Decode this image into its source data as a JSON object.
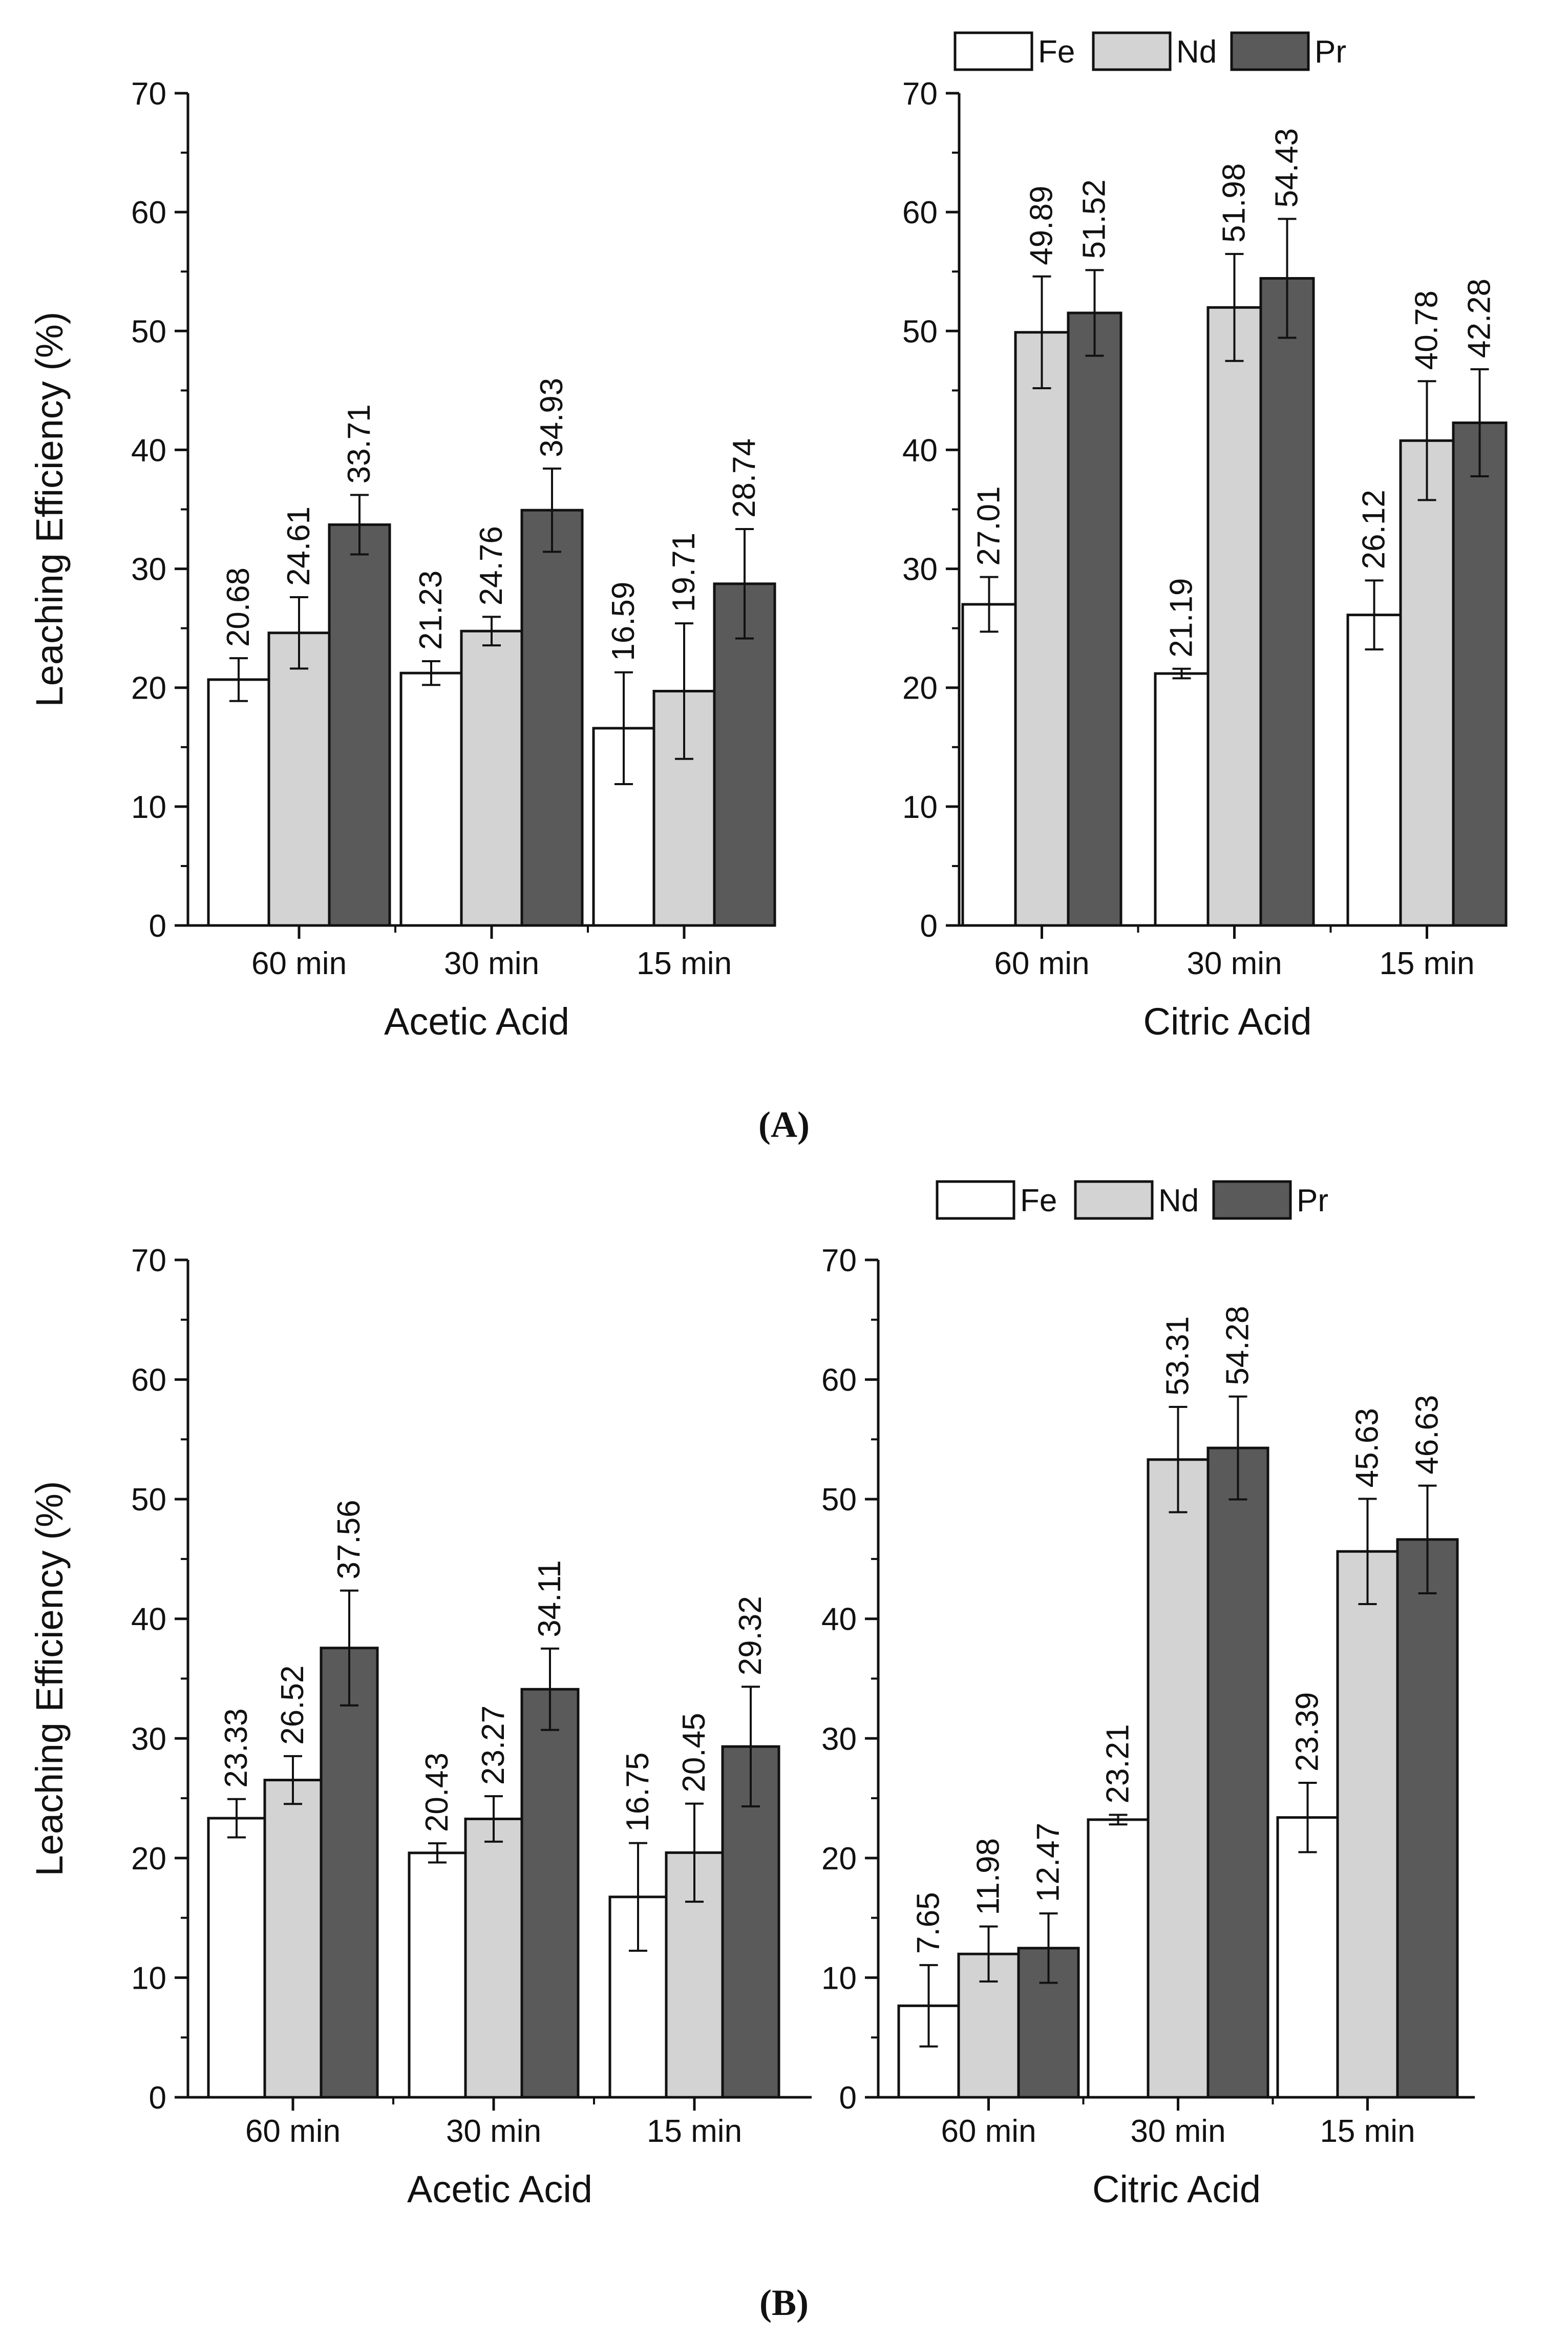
{
  "figure": {
    "series_names": [
      "Fe",
      "Nd",
      "Pr"
    ],
    "series_colors": [
      "#ffffff",
      "#d3d3d3",
      "#5a5a5a"
    ],
    "panel_labels": [
      "(A)",
      "(B)"
    ]
  },
  "chart_data": [
    {
      "type": "bar",
      "panel": "A",
      "position": "top-left",
      "title": "",
      "xlabel": "Acetic Acid",
      "ylabel": "Leaching Efficiency (%)",
      "ylim": [
        0,
        70
      ],
      "yticks": [
        0,
        10,
        20,
        30,
        40,
        50,
        60,
        70
      ],
      "categories": [
        "60 min",
        "30 min",
        "15 min"
      ],
      "legend": false,
      "series": [
        {
          "name": "Fe",
          "values": [
            20.68,
            21.23,
            16.59
          ],
          "errors": [
            1.8,
            1.0,
            4.7
          ],
          "labels": [
            "20.68",
            "21.23",
            "16.59"
          ]
        },
        {
          "name": "Nd",
          "values": [
            24.61,
            24.76,
            19.71
          ],
          "errors": [
            3.0,
            1.2,
            5.7
          ],
          "labels": [
            "24.61",
            "24.76",
            "19.71"
          ]
        },
        {
          "name": "Pr",
          "values": [
            33.71,
            34.93,
            28.74
          ],
          "errors": [
            2.5,
            3.5,
            4.6
          ],
          "labels": [
            "33.71",
            "34.93",
            "28.74"
          ]
        }
      ]
    },
    {
      "type": "bar",
      "panel": "A",
      "position": "top-right",
      "title": "",
      "xlabel": "Citric Acid",
      "ylabel": "",
      "ylim": [
        0,
        70
      ],
      "yticks": [
        0,
        10,
        20,
        30,
        40,
        50,
        60,
        70
      ],
      "categories": [
        "60 min",
        "30 min",
        "15 min"
      ],
      "legend": true,
      "series": [
        {
          "name": "Fe",
          "values": [
            27.01,
            21.19,
            26.12
          ],
          "errors": [
            2.3,
            0.4,
            2.9
          ],
          "labels": [
            "27.01",
            "21.19",
            "26.12"
          ]
        },
        {
          "name": "Nd",
          "values": [
            49.89,
            51.98,
            40.78
          ],
          "errors": [
            4.7,
            4.5,
            5.0
          ],
          "labels": [
            "49.89",
            "51.98",
            "40.78"
          ]
        },
        {
          "name": "Pr",
          "values": [
            51.52,
            54.43,
            42.28
          ],
          "errors": [
            3.6,
            5.0,
            4.5
          ],
          "labels": [
            "51.52",
            "54.43",
            "42.28"
          ]
        }
      ]
    },
    {
      "type": "bar",
      "panel": "B",
      "position": "bottom-left",
      "title": "",
      "xlabel": "Acetic Acid",
      "ylabel": "Leaching Efficiency (%)",
      "ylim": [
        0,
        70
      ],
      "yticks": [
        0,
        10,
        20,
        30,
        40,
        50,
        60,
        70
      ],
      "categories": [
        "60 min",
        "30 min",
        "15 min"
      ],
      "legend": false,
      "series": [
        {
          "name": "Fe",
          "values": [
            23.33,
            20.43,
            16.75
          ],
          "errors": [
            1.6,
            0.8,
            4.5
          ],
          "labels": [
            "23.33",
            "20.43",
            "16.75"
          ]
        },
        {
          "name": "Nd",
          "values": [
            26.52,
            23.27,
            20.45
          ],
          "errors": [
            2.0,
            1.9,
            4.1
          ],
          "labels": [
            "26.52",
            "23.27",
            "20.45"
          ]
        },
        {
          "name": "Pr",
          "values": [
            37.56,
            34.11,
            29.32
          ],
          "errors": [
            4.8,
            3.4,
            5.0
          ],
          "labels": [
            "37.56",
            "34.11",
            "29.32"
          ]
        }
      ]
    },
    {
      "type": "bar",
      "panel": "B",
      "position": "bottom-right",
      "title": "",
      "xlabel": "Citric Acid",
      "ylabel": "",
      "ylim": [
        0,
        70
      ],
      "yticks": [
        0,
        10,
        20,
        30,
        40,
        50,
        60,
        70
      ],
      "categories": [
        "60 min",
        "30 min",
        "15 min"
      ],
      "legend": true,
      "series": [
        {
          "name": "Fe",
          "values": [
            7.65,
            23.21,
            23.39
          ],
          "errors": [
            3.4,
            0.4,
            2.9
          ],
          "labels": [
            "7.65",
            "23.21",
            "23.39"
          ]
        },
        {
          "name": "Nd",
          "values": [
            11.98,
            53.31,
            45.63
          ],
          "errors": [
            2.3,
            4.4,
            4.4
          ],
          "labels": [
            "11.98",
            "53.31",
            "45.63"
          ]
        },
        {
          "name": "Pr",
          "values": [
            12.47,
            54.28,
            46.63
          ],
          "errors": [
            2.9,
            4.3,
            4.5
          ],
          "labels": [
            "12.47",
            "54.28",
            "46.63"
          ]
        }
      ]
    }
  ]
}
